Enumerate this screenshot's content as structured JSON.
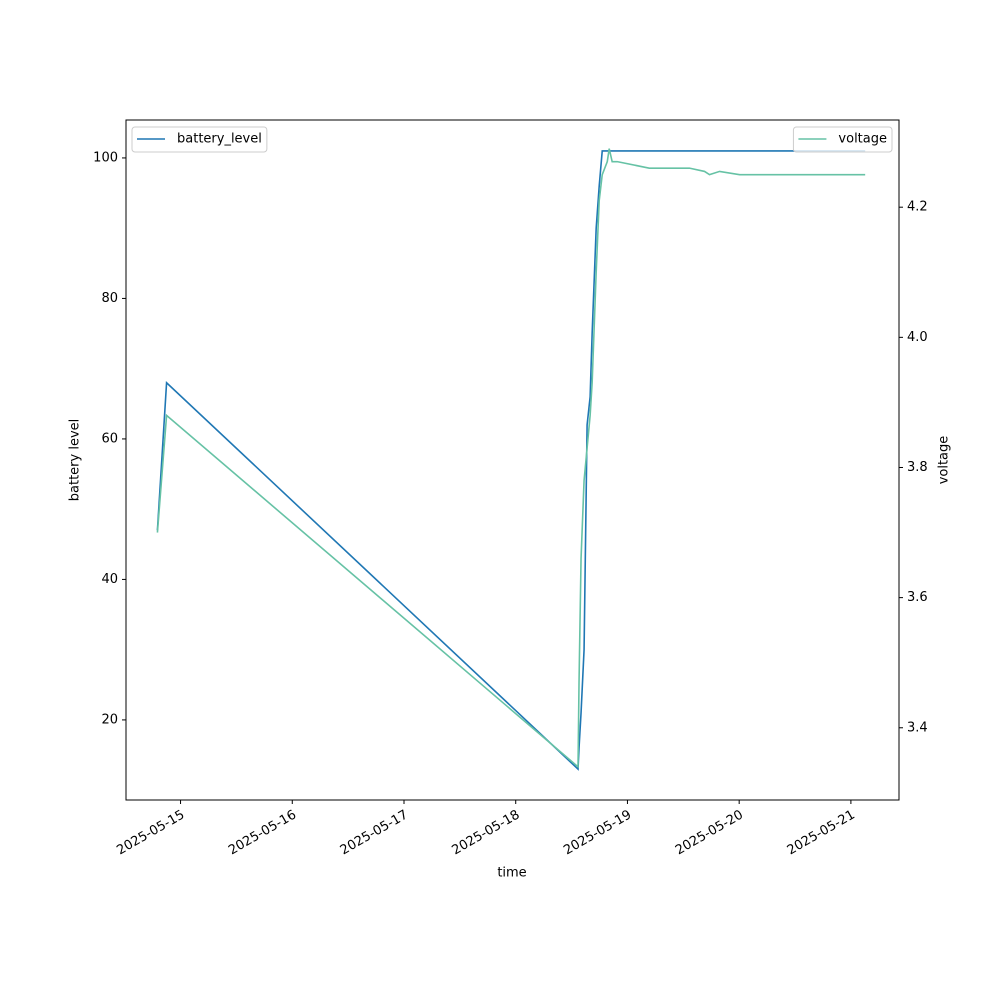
{
  "chart_data": {
    "type": "line",
    "x_label": "time",
    "y_label": "battery level",
    "y2_label": "voltage",
    "x": [
      "2025-05-14 19:02",
      "2025-05-14 21:00",
      "2025-05-18 13:23",
      "2025-05-18 13:36",
      "2025-05-18 14:02",
      "2025-05-18 14:41",
      "2025-05-18 15:20",
      "2025-05-18 15:59",
      "2025-05-18 16:25",
      "2025-05-18 17:17",
      "2025-05-18 17:56",
      "2025-05-18 18:35",
      "2025-05-18 19:40",
      "2025-05-18 20:05",
      "2025-05-18 20:43",
      "2025-05-18 21:48",
      "2025-05-19 04:42",
      "2025-05-19 13:19",
      "2025-05-19 16:34",
      "2025-05-19 17:38",
      "2025-05-19 19:48",
      "2025-05-20 00:06",
      "2025-05-21 03:04"
    ],
    "series": [
      {
        "name": "battery_level",
        "color": "#1f77b4",
        "axis": "y",
        "legend": "upper left",
        "values": [
          47,
          68,
          13,
          16,
          21,
          30,
          62,
          66,
          75,
          90,
          96,
          101,
          101,
          101,
          101,
          101,
          101,
          101,
          101,
          101,
          101,
          101,
          101
        ]
      },
      {
        "name": "voltage",
        "color": "#66c2a5",
        "axis": "y2",
        "legend": "upper right",
        "values": [
          3.7,
          3.88,
          3.34,
          3.47,
          3.66,
          3.78,
          3.83,
          3.88,
          3.93,
          4.1,
          4.21,
          4.25,
          4.27,
          4.29,
          4.27,
          4.27,
          4.26,
          4.26,
          4.255,
          4.25,
          4.255,
          4.25,
          4.25
        ]
      }
    ],
    "xlim": [
      "2025-05-14 12:17",
      "2025-05-21 10:20"
    ],
    "xticks": [
      "2025-05-15",
      "2025-05-16",
      "2025-05-17",
      "2025-05-18",
      "2025-05-19",
      "2025-05-20",
      "2025-05-21"
    ],
    "ylim": [
      8.6,
      105.4
    ],
    "yticks": [
      20,
      40,
      60,
      80,
      100
    ],
    "y2lim": [
      3.289,
      4.334
    ],
    "y2ticks": [
      3.4,
      3.6,
      3.8,
      {
        "value": 4,
        "label": "4.0"
      },
      4.2
    ],
    "grid": false
  }
}
